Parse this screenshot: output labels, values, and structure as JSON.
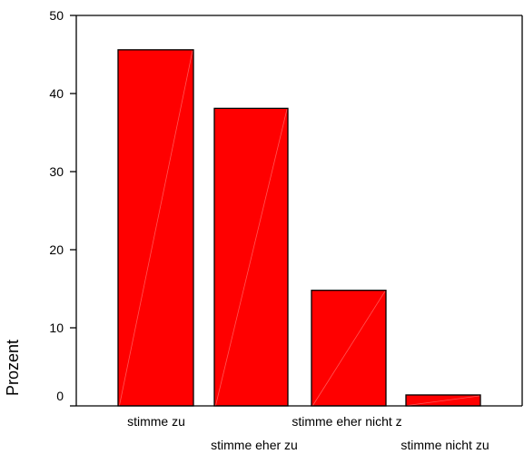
{
  "chart_data": {
    "type": "bar",
    "title": "",
    "xlabel": "",
    "ylabel": "Prozent",
    "categories": [
      "stimme zu",
      "stimme eher zu",
      "stimme eher nicht  z",
      "stimme nicht zu"
    ],
    "values": [
      45.6,
      38.1,
      14.8,
      1.4
    ],
    "ylim": [
      0,
      50
    ],
    "yticks": [
      0,
      10,
      20,
      30,
      40,
      50
    ],
    "grid": false,
    "legend": "none",
    "colors": {
      "bar_fill": "#ff0000",
      "bar_stroke": "#000000",
      "bar_highlight": "#ff6666",
      "axis": "#000000"
    }
  }
}
